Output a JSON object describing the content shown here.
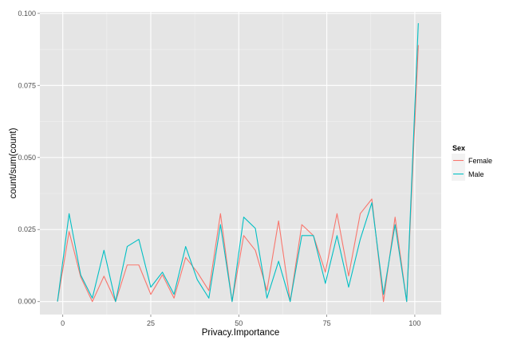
{
  "chart_data": {
    "type": "line",
    "title": "",
    "xlabel": "Privacy.Importance",
    "ylabel": "count/sum(count)",
    "xlim": [
      -6.5,
      107.5
    ],
    "ylim": [
      -0.0045,
      0.1005
    ],
    "x_ticks": [
      0,
      25,
      50,
      75,
      100
    ],
    "x_tick_labels": [
      "0",
      "25",
      "50",
      "75",
      "100"
    ],
    "y_ticks": [
      0.0,
      0.025,
      0.05,
      0.075,
      0.1
    ],
    "y_tick_labels": [
      "0.000",
      "0.025",
      "0.050",
      "0.075",
      "0.100"
    ],
    "grid": true,
    "legend": {
      "title": "Sex",
      "position": "right"
    },
    "series": [
      {
        "name": "Female",
        "color": "#F8766D",
        "points": [
          [
            -1.5,
            0.0
          ],
          [
            1.8,
            0.0243
          ],
          [
            5.1,
            0.0085
          ],
          [
            8.4,
            0.0
          ],
          [
            11.7,
            0.0088
          ],
          [
            15.0,
            0.0
          ],
          [
            18.3,
            0.0127
          ],
          [
            21.6,
            0.0127
          ],
          [
            25.0,
            0.0025
          ],
          [
            28.3,
            0.0093
          ],
          [
            31.6,
            0.0012
          ],
          [
            34.9,
            0.0153
          ],
          [
            38.2,
            0.0102
          ],
          [
            41.5,
            0.0038
          ],
          [
            44.8,
            0.0305
          ],
          [
            48.1,
            0.0
          ],
          [
            51.4,
            0.0229
          ],
          [
            54.7,
            0.0178
          ],
          [
            58.0,
            0.0038
          ],
          [
            61.3,
            0.028
          ],
          [
            64.6,
            0.0
          ],
          [
            67.9,
            0.0267
          ],
          [
            71.2,
            0.0229
          ],
          [
            74.6,
            0.0102
          ],
          [
            77.9,
            0.0305
          ],
          [
            81.2,
            0.0089
          ],
          [
            84.5,
            0.0305
          ],
          [
            87.8,
            0.0356
          ],
          [
            91.1,
            0.0
          ],
          [
            94.4,
            0.0293
          ],
          [
            97.7,
            0.0
          ],
          [
            101.0,
            0.089
          ]
        ]
      },
      {
        "name": "Male",
        "color": "#00BFC4",
        "points": [
          [
            -1.5,
            0.0
          ],
          [
            1.8,
            0.0305
          ],
          [
            5.1,
            0.0092
          ],
          [
            8.4,
            0.0012
          ],
          [
            11.7,
            0.0178
          ],
          [
            15.0,
            0.0
          ],
          [
            18.3,
            0.0191
          ],
          [
            21.6,
            0.0216
          ],
          [
            25.0,
            0.005
          ],
          [
            28.3,
            0.0102
          ],
          [
            31.6,
            0.0025
          ],
          [
            34.9,
            0.0191
          ],
          [
            38.2,
            0.0076
          ],
          [
            41.5,
            0.0012
          ],
          [
            44.8,
            0.0267
          ],
          [
            48.1,
            0.0
          ],
          [
            51.4,
            0.0293
          ],
          [
            54.7,
            0.0254
          ],
          [
            58.0,
            0.0012
          ],
          [
            61.3,
            0.014
          ],
          [
            64.6,
            0.0
          ],
          [
            67.9,
            0.0229
          ],
          [
            71.2,
            0.0229
          ],
          [
            74.6,
            0.0063
          ],
          [
            77.9,
            0.0229
          ],
          [
            81.2,
            0.005
          ],
          [
            84.5,
            0.0216
          ],
          [
            87.8,
            0.0343
          ],
          [
            91.1,
            0.0025
          ],
          [
            94.4,
            0.0267
          ],
          [
            97.7,
            0.0
          ],
          [
            101.0,
            0.0966
          ]
        ]
      }
    ]
  }
}
